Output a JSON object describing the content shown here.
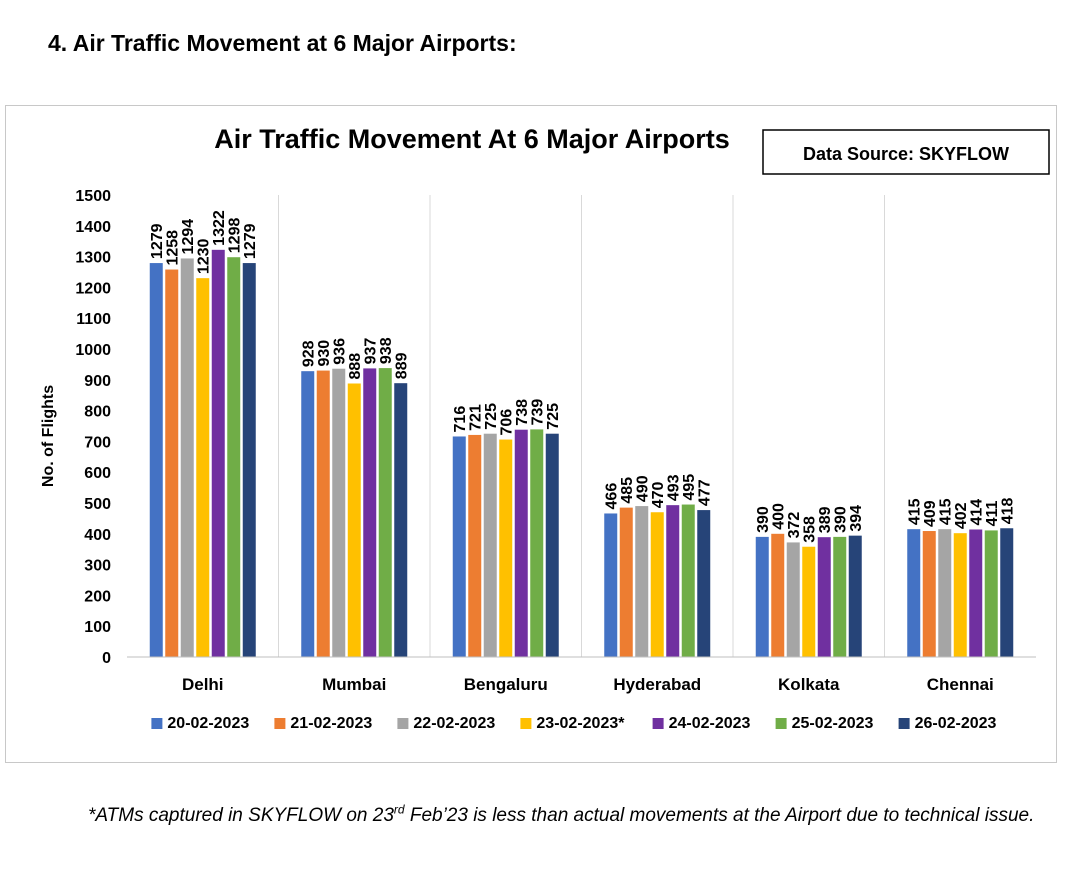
{
  "page": {
    "section_heading": "4.   Air Traffic Movement at 6 Major Airports:",
    "footnote": {
      "part1": "*ATMs captured in SKYFLOW on 23",
      "superscript": "rd",
      "part2": " Feb’23 is less than actual movements at the Airport due to technical issue."
    }
  },
  "chart_data": {
    "type": "bar",
    "title": "Air Traffic Movement At 6 Major Airports",
    "source_label": "Data Source: SKYFLOW",
    "xlabel": "",
    "ylabel": "No. of Flights",
    "ylim": [
      0,
      1500
    ],
    "yticks": [
      "0",
      "100",
      "200",
      "300",
      "400",
      "500",
      "600",
      "700",
      "800",
      "900",
      "1000",
      "1100",
      "1200",
      "1300",
      "1400",
      "1500"
    ],
    "grid": false,
    "legend_position": "bottom",
    "categories": [
      "Delhi",
      "Mumbai",
      "Bengaluru",
      "Hyderabad",
      "Kolkata",
      "Chennai"
    ],
    "series": [
      {
        "name": "20-02-2023",
        "color": "#4472C4",
        "values": [
          1279,
          928,
          716,
          466,
          390,
          415
        ]
      },
      {
        "name": "21-02-2023",
        "color": "#ED7D31",
        "values": [
          1258,
          930,
          721,
          485,
          400,
          409
        ]
      },
      {
        "name": "22-02-2023",
        "color": "#A5A5A5",
        "values": [
          1294,
          936,
          725,
          490,
          372,
          415
        ]
      },
      {
        "name": "23-02-2023*",
        "color": "#FFC000",
        "values": [
          1230,
          888,
          706,
          470,
          358,
          402
        ]
      },
      {
        "name": "24-02-2023",
        "color": "#7030A0",
        "values": [
          1322,
          937,
          738,
          493,
          389,
          414
        ]
      },
      {
        "name": "25-02-2023",
        "color": "#70AD47",
        "values": [
          1298,
          938,
          739,
          495,
          390,
          411
        ]
      },
      {
        "name": "26-02-2023",
        "color": "#264478",
        "values": [
          1279,
          889,
          725,
          477,
          394,
          418
        ]
      }
    ]
  }
}
